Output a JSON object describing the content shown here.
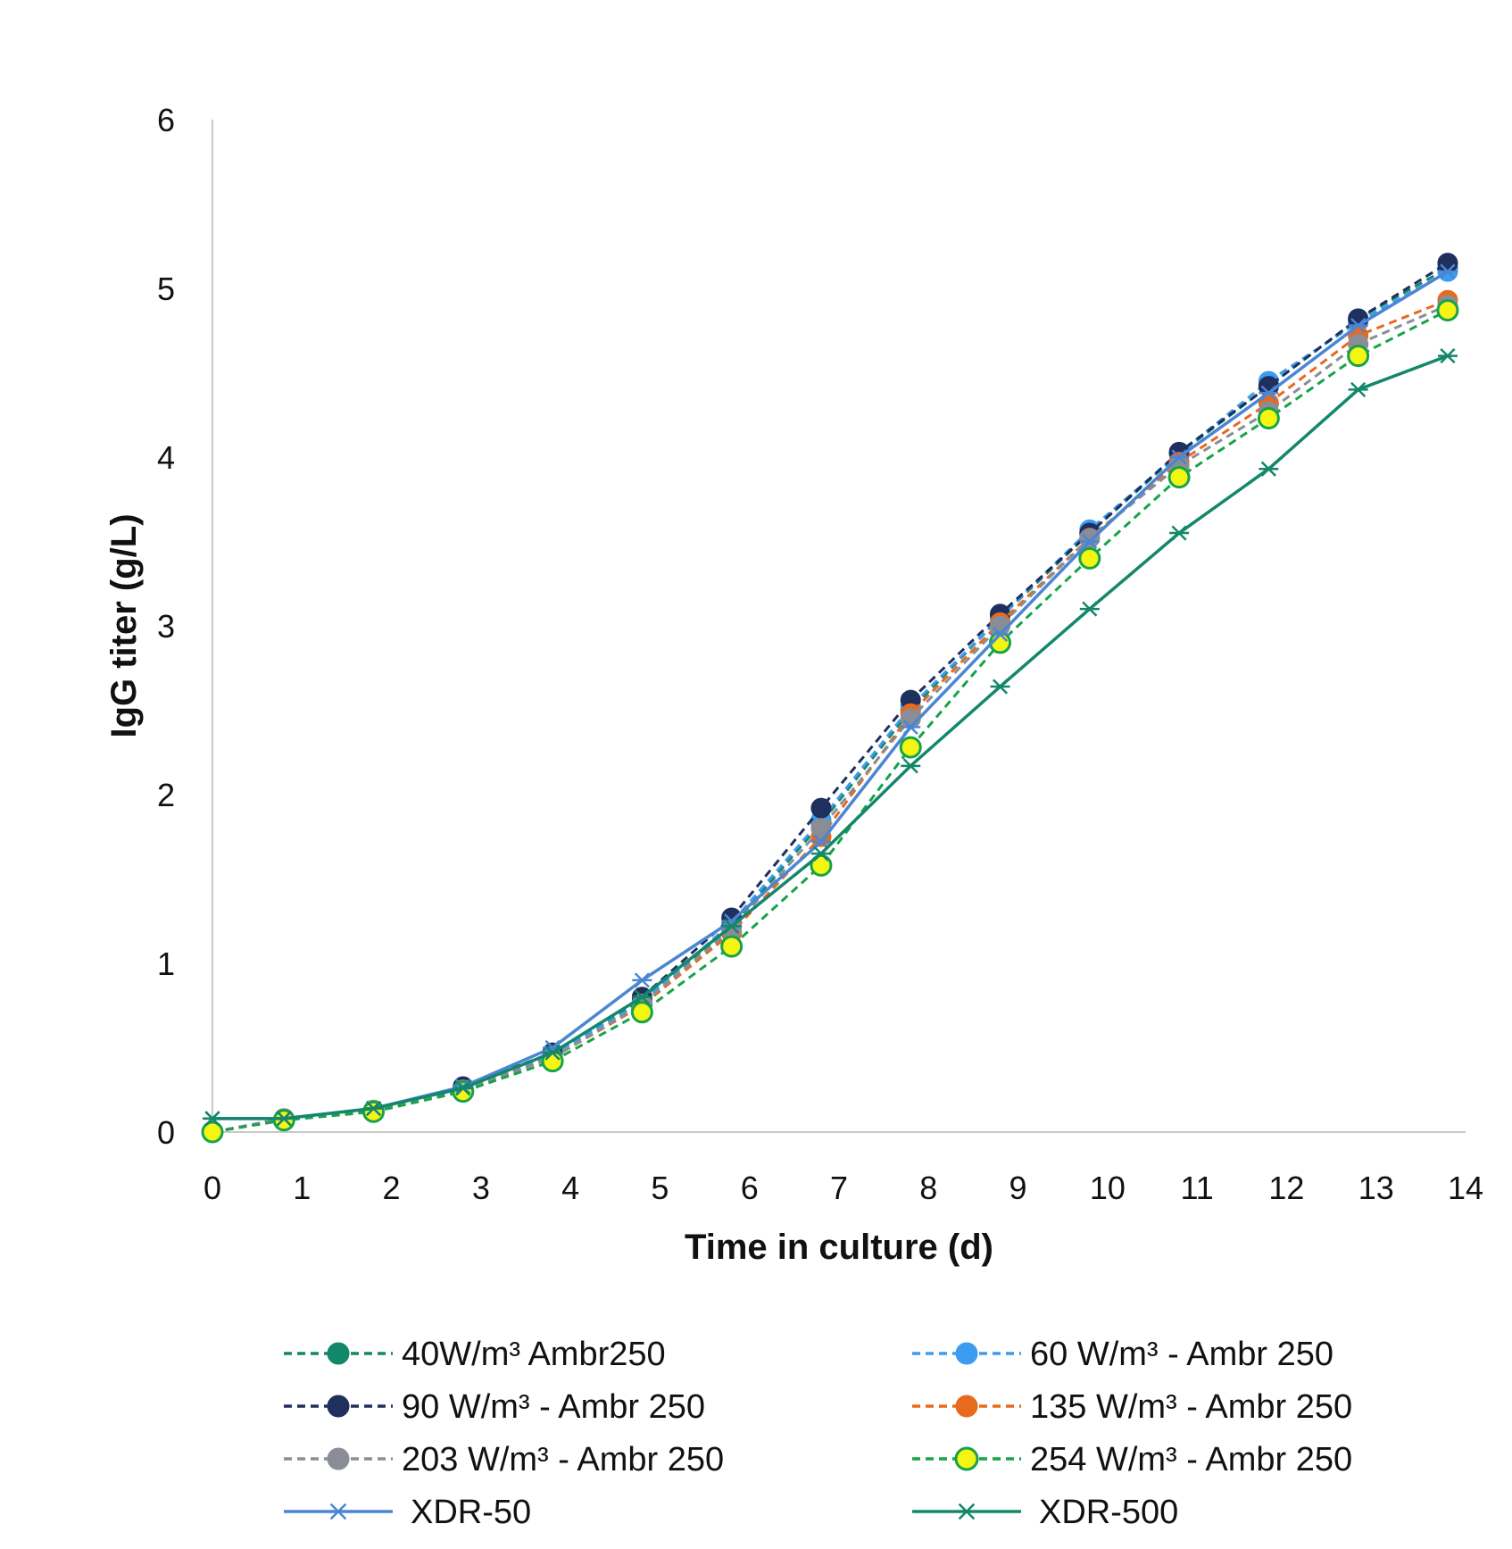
{
  "chart_data": {
    "type": "line",
    "title": "",
    "xlabel": "Time in culture (d)",
    "ylabel": "IgG titer (g/L)",
    "xlim": [
      0,
      14
    ],
    "ylim": [
      0,
      6
    ],
    "xticks": [
      "0",
      "1",
      "2",
      "3",
      "4",
      "5",
      "6",
      "7",
      "8",
      "9",
      "10",
      "11",
      "12",
      "13",
      "14"
    ],
    "yticks": [
      "0",
      "1",
      "2",
      "3",
      "4",
      "5",
      "6"
    ],
    "grid": false,
    "legend_position": "bottom",
    "series": [
      {
        "name": "40W/m³ Ambr250",
        "color": "#12876a",
        "dash": true,
        "marker": "circle",
        "x": [
          0,
          0.8,
          1.8,
          2.8,
          3.8,
          4.8,
          5.8,
          6.8,
          7.8,
          8.8,
          9.8,
          10.8,
          11.8,
          12.8,
          13.8
        ],
        "y": [
          0.0,
          0.08,
          0.13,
          0.26,
          0.46,
          0.78,
          1.22,
          1.83,
          2.5,
          3.05,
          3.55,
          4.02,
          4.42,
          4.82,
          5.12
        ]
      },
      {
        "name": "60 W/m³ - Ambr 250",
        "color": "#3b9cf0",
        "dash": true,
        "marker": "circle",
        "x": [
          0,
          0.8,
          1.8,
          2.8,
          3.8,
          4.8,
          5.8,
          6.8,
          7.8,
          8.8,
          9.8,
          10.8,
          11.8,
          12.8,
          13.8
        ],
        "y": [
          0.0,
          0.08,
          0.13,
          0.26,
          0.46,
          0.77,
          1.24,
          1.85,
          2.52,
          3.05,
          3.57,
          4.02,
          4.45,
          4.8,
          5.1
        ]
      },
      {
        "name": "90 W/m³ - Ambr 250",
        "color": "#1f2f5e",
        "dash": true,
        "marker": "circle",
        "x": [
          0,
          0.8,
          1.8,
          2.8,
          3.8,
          4.8,
          5.8,
          6.8,
          7.8,
          8.8,
          9.8,
          10.8,
          11.8,
          12.8,
          13.8
        ],
        "y": [
          0.0,
          0.08,
          0.13,
          0.27,
          0.47,
          0.8,
          1.27,
          1.92,
          2.56,
          3.07,
          3.55,
          4.03,
          4.42,
          4.82,
          5.15
        ]
      },
      {
        "name": "135 W/m³ - Ambr 250",
        "color": "#e86a1c",
        "dash": true,
        "marker": "circle",
        "x": [
          0,
          0.8,
          1.8,
          2.8,
          3.8,
          4.8,
          5.8,
          6.8,
          7.8,
          8.8,
          9.8,
          10.8,
          11.8,
          12.8,
          13.8
        ],
        "y": [
          0.0,
          0.08,
          0.13,
          0.25,
          0.44,
          0.75,
          1.18,
          1.75,
          2.48,
          3.02,
          3.52,
          3.97,
          4.32,
          4.72,
          4.93
        ]
      },
      {
        "name": "203 W/m³ - Ambr 250",
        "color": "#8a8d96",
        "dash": true,
        "marker": "circle",
        "x": [
          0,
          0.8,
          1.8,
          2.8,
          3.8,
          4.8,
          5.8,
          6.8,
          7.8,
          8.8,
          9.8,
          10.8,
          11.8,
          12.8,
          13.8
        ],
        "y": [
          0.0,
          0.08,
          0.13,
          0.25,
          0.44,
          0.76,
          1.2,
          1.8,
          2.45,
          3.0,
          3.52,
          3.95,
          4.27,
          4.67,
          4.9
        ]
      },
      {
        "name": "254 W/m³ - Ambr 250",
        "color": "#16a34a",
        "dash": true,
        "marker": "circle-yellow",
        "x": [
          0,
          0.8,
          1.8,
          2.8,
          3.8,
          4.8,
          5.8,
          6.8,
          7.8,
          8.8,
          9.8,
          10.8,
          11.8,
          12.8,
          13.8
        ],
        "y": [
          0.0,
          0.07,
          0.12,
          0.24,
          0.42,
          0.71,
          1.1,
          1.58,
          2.28,
          2.9,
          3.4,
          3.88,
          4.23,
          4.6,
          4.87
        ]
      },
      {
        "name": "XDR-50",
        "color": "#4a86d4",
        "dash": false,
        "marker": "star",
        "x": [
          0,
          0.8,
          1.8,
          2.8,
          3.8,
          4.8,
          5.8,
          6.8,
          7.8,
          8.8,
          9.8,
          10.8,
          11.8,
          12.8,
          13.8
        ],
        "y": [
          0.08,
          0.08,
          0.14,
          0.27,
          0.5,
          0.9,
          1.25,
          1.72,
          2.4,
          2.95,
          3.5,
          4.0,
          4.38,
          4.78,
          5.1
        ]
      },
      {
        "name": "XDR-500",
        "color": "#13876a",
        "dash": false,
        "marker": "star",
        "x": [
          0,
          0.8,
          1.8,
          2.8,
          3.8,
          4.8,
          5.8,
          6.8,
          7.8,
          8.8,
          9.8,
          10.8,
          11.8,
          12.8,
          13.8
        ],
        "y": [
          0.08,
          0.08,
          0.14,
          0.26,
          0.47,
          0.8,
          1.22,
          1.65,
          2.17,
          2.64,
          3.1,
          3.55,
          3.93,
          4.4,
          4.6
        ]
      }
    ]
  }
}
